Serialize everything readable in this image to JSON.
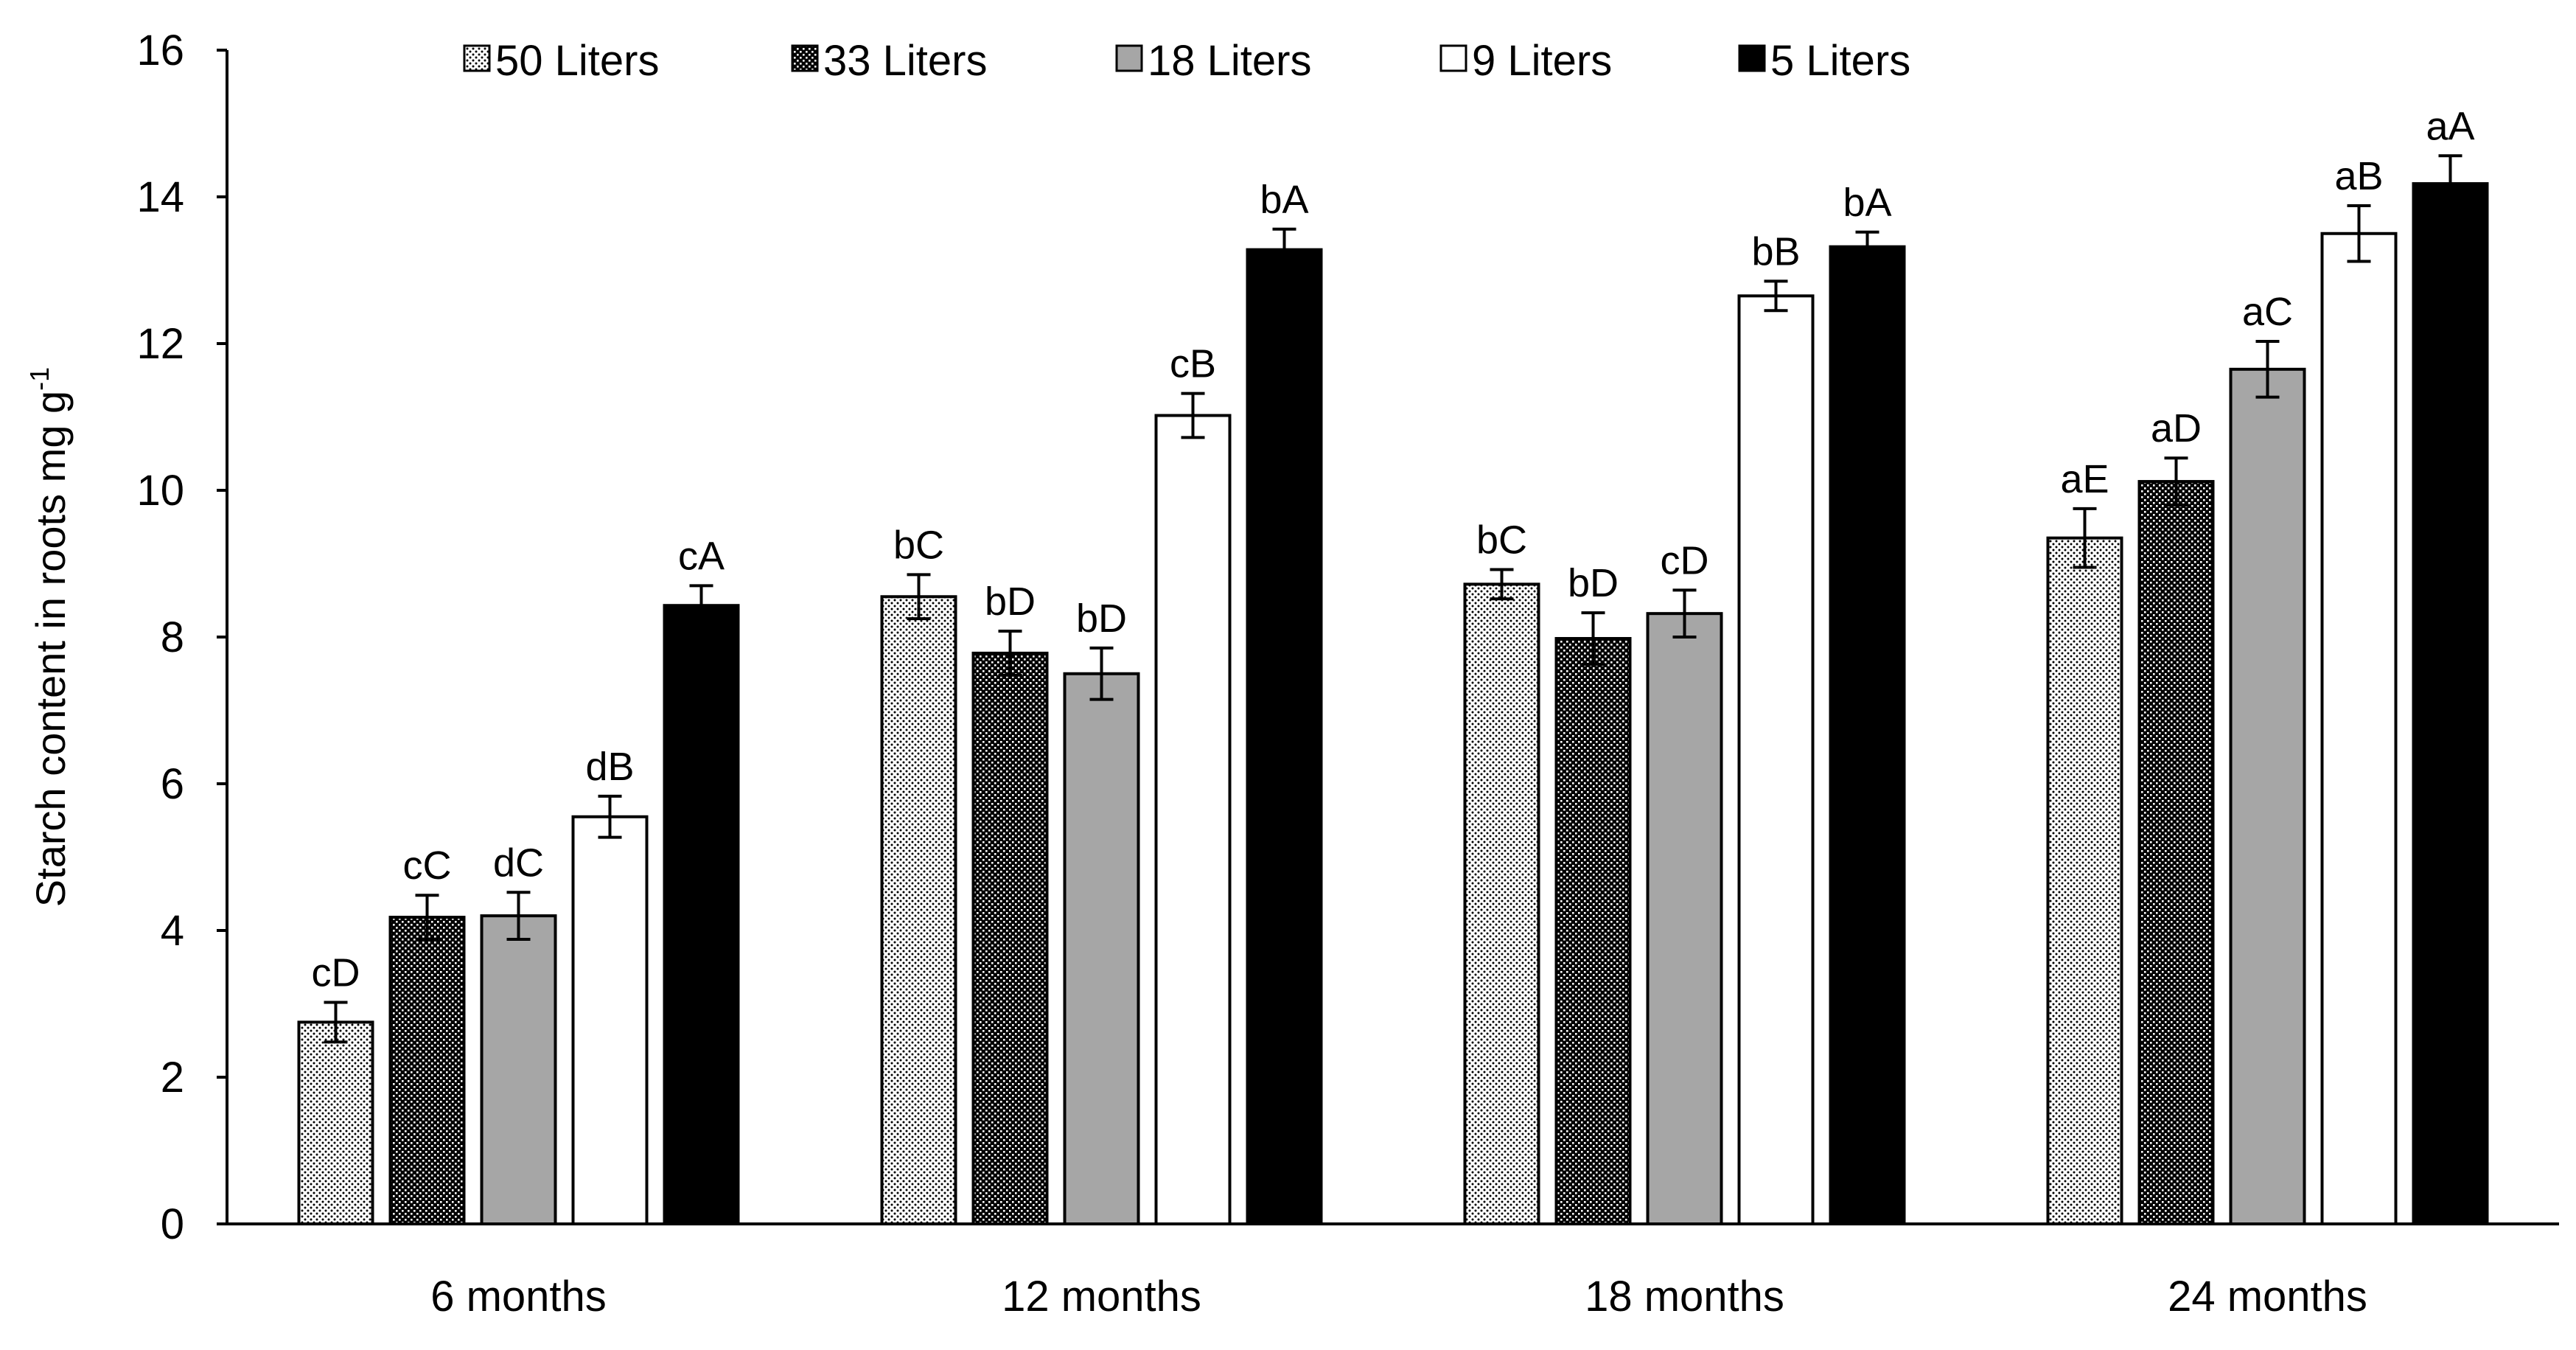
{
  "chart_data": {
    "type": "bar",
    "ylabel": "Starch content in roots mg g",
    "ylabel_sup": "-1",
    "ylim": [
      0,
      16
    ],
    "yticks": [
      0,
      2,
      4,
      6,
      8,
      10,
      12,
      14,
      16
    ],
    "grid": false,
    "legend_position": "top",
    "categories": [
      "6 months",
      "12 months",
      "18 months",
      "24 months"
    ],
    "series": [
      {
        "name": "50 Liters",
        "pattern": "dots-fine",
        "color": "#ffffff",
        "values": [
          2.75,
          8.55,
          8.72,
          9.35
        ],
        "errors": [
          0.27,
          0.3,
          0.2,
          0.4
        ],
        "labels": [
          "cD",
          "bC",
          "bC",
          "aE"
        ]
      },
      {
        "name": "33 Liters",
        "pattern": "dots-dense",
        "color": "#000000",
        "values": [
          4.18,
          7.78,
          7.98,
          10.12
        ],
        "errors": [
          0.3,
          0.3,
          0.35,
          0.32
        ],
        "labels": [
          "cC",
          "bD",
          "bD",
          "aD"
        ]
      },
      {
        "name": "18 Liters",
        "pattern": "solid",
        "color": "#a6a6a6",
        "values": [
          4.2,
          7.5,
          8.32,
          11.65
        ],
        "errors": [
          0.32,
          0.35,
          0.32,
          0.38
        ],
        "labels": [
          "dC",
          "bD",
          "cD",
          "aC"
        ]
      },
      {
        "name": "9 Liters",
        "pattern": "solid",
        "color": "#ffffff",
        "values": [
          5.55,
          11.02,
          12.65,
          13.5
        ],
        "errors": [
          0.28,
          0.3,
          0.2,
          0.38
        ],
        "labels": [
          "dB",
          "cB",
          "bB",
          "aB"
        ]
      },
      {
        "name": "5 Liters",
        "pattern": "solid",
        "color": "#000000",
        "values": [
          8.43,
          13.28,
          13.32,
          14.18
        ],
        "errors": [
          0.27,
          0.28,
          0.2,
          0.38
        ],
        "labels": [
          "cA",
          "bA",
          "bA",
          "aA"
        ]
      }
    ]
  }
}
